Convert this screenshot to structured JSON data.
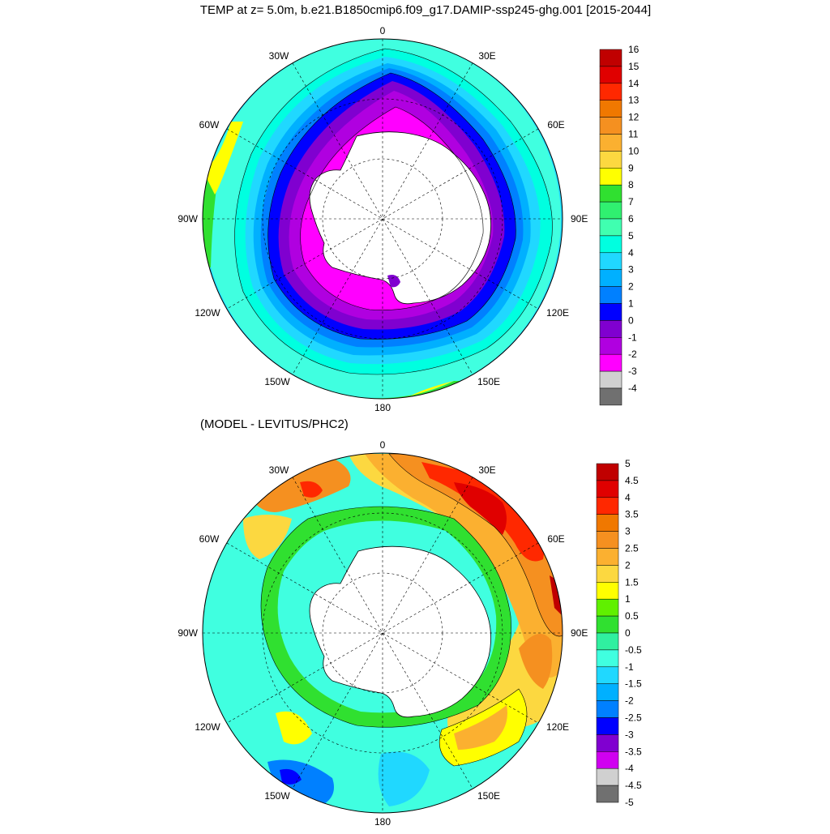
{
  "title": "TEMP at z=   5.0m, b.e21.B1850cmip6.f09_g17.DAMIP-ssp245-ghg.001 [2015-2044]",
  "subtitle": "(MODEL - LEVITUS/PHC2)",
  "lon_labels": {
    "top": "0",
    "bottom": "180",
    "left": "90W",
    "right": "90E",
    "w30": "30W",
    "w60": "60W",
    "w120": "120W",
    "w150": "150W",
    "e30": "30E",
    "e60": "60E",
    "e120": "120E",
    "e150": "150E"
  },
  "top_colorbar": {
    "labels": [
      "16",
      "15",
      "14",
      "13",
      "12",
      "11",
      "10",
      "9",
      "8",
      "7",
      "6",
      "5",
      "4",
      "3",
      "2",
      "1",
      "0",
      "-1",
      "-2",
      "-3",
      "-4"
    ],
    "colors": [
      "#c00000",
      "#e00000",
      "#ff2800",
      "#f07800",
      "#f59020",
      "#fbb030",
      "#fcd840",
      "#ffff00",
      "#30e030",
      "#30f070",
      "#40ffb0",
      "#00ffe0",
      "#20d8ff",
      "#00b0ff",
      "#0080ff",
      "#0000ff",
      "#8000d0",
      "#b000e0",
      "#ff00ff",
      "#d0d0d0",
      "#707070"
    ]
  },
  "bottom_colorbar": {
    "labels": [
      "5",
      "4.5",
      "4",
      "3.5",
      "3",
      "2.5",
      "2",
      "1.5",
      "1",
      "0.5",
      "0",
      "-0.5",
      "-1",
      "-1.5",
      "-2",
      "-2.5",
      "-3",
      "-3.5",
      "-4",
      "-4.5",
      "-5"
    ],
    "colors": [
      "#c00000",
      "#e00000",
      "#ff2800",
      "#f07800",
      "#f59020",
      "#fbb030",
      "#fcd840",
      "#ffff00",
      "#60f000",
      "#30e030",
      "#30f0a0",
      "#40ffe0",
      "#20d8ff",
      "#00b0ff",
      "#0080ff",
      "#0000ff",
      "#8000d0",
      "#d000f0",
      "#d0d0d0",
      "#707070"
    ]
  },
  "colors": {
    "land": "#ffffff",
    "outline": "#000000"
  }
}
